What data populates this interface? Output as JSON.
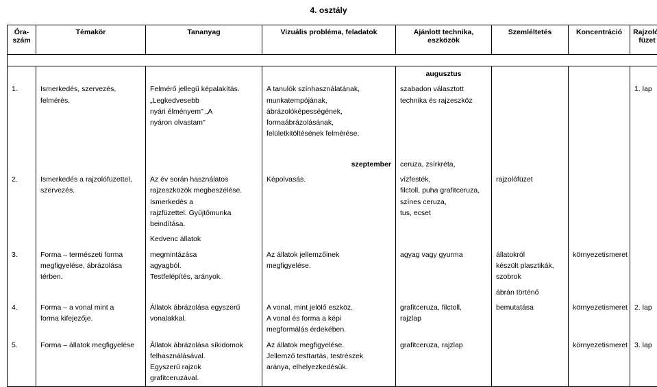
{
  "title": "4. osztály",
  "headers": {
    "c1a": "Óra-",
    "c1b": "szám",
    "c2": "Témakör",
    "c3": "Tananyag",
    "c4": "Vizuális probléma, feladatok",
    "c5a": "Ajánlott technika,",
    "c5b": "eszközök",
    "c6": "Szemléltetés",
    "c7": "Koncentráció",
    "c8a": "Rajzoló-",
    "c8b": "füzet"
  },
  "months": {
    "aug": "augusztus",
    "sep": "szeptember"
  },
  "r1": {
    "num": "1.",
    "topic1": "Ismerkedés, szervezés,",
    "topic2": "felmérés.",
    "mat1": "Felmérő jellegű képalakítás.",
    "mat2": "„Legkedvesebb",
    "mat3": "nyári élményem\" „A",
    "mat4": "nyáron olvastam\"",
    "task1": "A tanulók színhasználatának,",
    "task2": "munkatempójának,",
    "task3": "ábrázolóképességének,",
    "task4": "formaábrázolásának,",
    "task5": " felületkitöltésének felmérése.",
    "tool1": "szabadon választott",
    "tool2": "technika és rajzeszköz",
    "fuz": "1. lap"
  },
  "r2": {
    "num": "2.",
    "topic1": "Ismerkedés a rajzolófüzettel,",
    "topic2": "szervezés.",
    "mat1": "Az év során használatos",
    "mat2": "rajzeszközök megbeszélése.",
    "mat3": "Ismerkedés a",
    "mat4": "rajzfüzettel. Gyűjtőmunka",
    "mat5": "beindítása.",
    "task1": "Képolvasás.",
    "tool0": " ceruza, zsírkréta,",
    "tool1": "vízfesték,",
    "tool2": "filctoll, puha grafitceruza,",
    "tool3": "színes ceruza,",
    "tool4": "tus, ecset",
    "show": "rajzolófüzet"
  },
  "r3": {
    "num": "3.",
    "topic1": "Forma – természeti forma",
    "topic2": "megfigyelése, ábrázolása",
    "topic3": "térben.",
    "mat0": "Kedvenc állatok",
    "mat1": "megmintázása",
    "mat2": "agyagból.",
    "mat3": "Testfelépítés, arányok.",
    "task1": "Az állatok jellemzőinek",
    "task2": "megfigyelése.",
    "tool1": "agyag vagy gyurma",
    "show1": "állatokról",
    "show2": "készült plasztikák,",
    "show3": "szobrok",
    "konc": "környezetismeret"
  },
  "r4": {
    "num": "4.",
    "topic1": "Forma – a vonal mint a",
    "topic2": "forma kifejezője.",
    "mat1": "Állatok ábrázolása egyszerű",
    "mat2": "vonalakkal.",
    "task1": "A vonal, mint jelölő eszköz.",
    "task2": "A vonal és forma a képi",
    "task3": "megformálás érdekében.",
    "tool1": "grafitceruza, filctoll,",
    "tool2": "rajzlap",
    "show0": "ábrán történő",
    "show1": "bemutatása",
    "konc": "környezetismeret",
    "fuz": "2. lap"
  },
  "r5": {
    "num": "5.",
    "topic1": "Forma – állatok megfigyelése",
    "mat1": "Állatok ábrázolása síkidomok",
    "mat2": "felhasználásával.",
    "mat3": "Egyszerű rajzok",
    "mat4": "grafitceruzával.",
    "task1": "Az állatok megfigyelése.",
    "task2": "Jellemző testtartás, testrészek",
    "task3": "aránya, elhelyezkedésük.",
    "tool1": "grafitceruza, rajzlap",
    "konc": "környezetismeret",
    "fuz": "3. lap"
  }
}
